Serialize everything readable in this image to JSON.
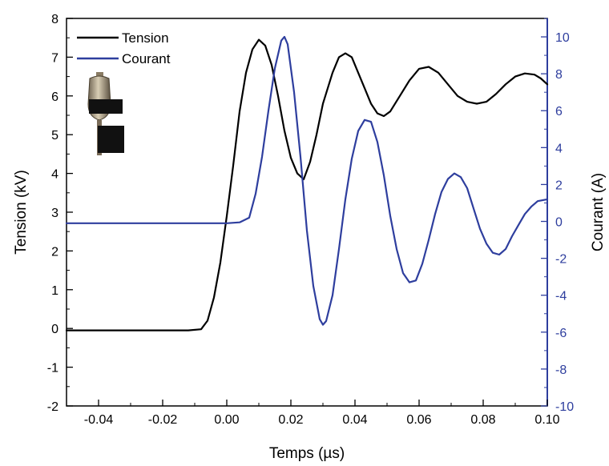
{
  "chart_data": {
    "type": "line",
    "xlabel": "Temps (µs)",
    "ylabel_left": "Tension (kV)",
    "ylabel_right": "Courant (A)",
    "xlim": [
      -0.05,
      0.1
    ],
    "ylim_left": [
      -2,
      8
    ],
    "ylim_right": [
      -10,
      11
    ],
    "x_ticks": [
      -0.04,
      -0.02,
      0.0,
      0.02,
      0.04,
      0.06,
      0.08,
      0.1
    ],
    "x_tick_labels": [
      "-0.04",
      "-0.02",
      "0.00",
      "0.02",
      "0.04",
      "0.06",
      "0.08",
      "0.10"
    ],
    "y_left_ticks": [
      -2,
      -1,
      0,
      1,
      2,
      3,
      4,
      5,
      6,
      7,
      8
    ],
    "y_left_tick_labels": [
      "-2",
      "-1",
      "0",
      "1",
      "2",
      "3",
      "4",
      "5",
      "6",
      "7",
      "8"
    ],
    "y_right_ticks": [
      -10,
      -8,
      -6,
      -4,
      -2,
      0,
      2,
      4,
      6,
      8,
      10
    ],
    "y_right_tick_labels": [
      "-10",
      "-8",
      "-6",
      "-4",
      "-2",
      "0",
      "2",
      "4",
      "6",
      "8",
      "10"
    ],
    "legend_position": "top-left",
    "grid": false,
    "series": [
      {
        "name": "Tension",
        "axis": "left",
        "color": "#000000",
        "x": [
          -0.05,
          -0.03,
          -0.012,
          -0.008,
          -0.006,
          -0.004,
          -0.002,
          0.0,
          0.002,
          0.004,
          0.006,
          0.008,
          0.01,
          0.012,
          0.014,
          0.016,
          0.018,
          0.02,
          0.022,
          0.024,
          0.026,
          0.028,
          0.03,
          0.033,
          0.035,
          0.037,
          0.039,
          0.041,
          0.043,
          0.045,
          0.047,
          0.049,
          0.051,
          0.054,
          0.057,
          0.06,
          0.063,
          0.066,
          0.069,
          0.072,
          0.075,
          0.078,
          0.081,
          0.084,
          0.087,
          0.09,
          0.093,
          0.096,
          0.098,
          0.1
        ],
        "y": [
          -0.05,
          -0.05,
          -0.05,
          -0.02,
          0.2,
          0.8,
          1.7,
          2.9,
          4.2,
          5.6,
          6.6,
          7.2,
          7.45,
          7.3,
          6.8,
          6.0,
          5.1,
          4.4,
          4.0,
          3.85,
          4.3,
          5.0,
          5.8,
          6.6,
          7.0,
          7.1,
          7.0,
          6.6,
          6.2,
          5.8,
          5.55,
          5.48,
          5.6,
          6.0,
          6.4,
          6.7,
          6.75,
          6.6,
          6.3,
          6.0,
          5.85,
          5.8,
          5.85,
          6.05,
          6.3,
          6.5,
          6.58,
          6.55,
          6.45,
          6.3
        ]
      },
      {
        "name": "Courant",
        "axis": "right",
        "color": "#2e3e9e",
        "x": [
          -0.05,
          -0.03,
          -0.01,
          0.0,
          0.004,
          0.007,
          0.009,
          0.011,
          0.013,
          0.015,
          0.017,
          0.018,
          0.019,
          0.021,
          0.023,
          0.025,
          0.027,
          0.029,
          0.03,
          0.031,
          0.033,
          0.035,
          0.037,
          0.039,
          0.041,
          0.043,
          0.045,
          0.047,
          0.049,
          0.051,
          0.053,
          0.055,
          0.057,
          0.059,
          0.061,
          0.063,
          0.065,
          0.067,
          0.069,
          0.071,
          0.073,
          0.075,
          0.077,
          0.079,
          0.081,
          0.083,
          0.085,
          0.087,
          0.089,
          0.091,
          0.093,
          0.095,
          0.097,
          0.1
        ],
        "y": [
          -0.1,
          -0.1,
          -0.1,
          -0.1,
          -0.05,
          0.2,
          1.5,
          3.5,
          6.0,
          8.3,
          9.8,
          10.0,
          9.6,
          7.0,
          3.5,
          -0.5,
          -3.5,
          -5.3,
          -5.6,
          -5.4,
          -4.0,
          -1.5,
          1.2,
          3.4,
          4.9,
          5.5,
          5.4,
          4.3,
          2.5,
          0.3,
          -1.5,
          -2.8,
          -3.3,
          -3.2,
          -2.3,
          -1.0,
          0.4,
          1.6,
          2.3,
          2.6,
          2.4,
          1.8,
          0.7,
          -0.4,
          -1.2,
          -1.7,
          -1.8,
          -1.5,
          -0.8,
          -0.2,
          0.4,
          0.8,
          1.1,
          1.2
        ]
      }
    ]
  },
  "legend": {
    "items": [
      {
        "label": "Tension",
        "color": "#000000"
      },
      {
        "label": "Courant",
        "color": "#2e3e9e"
      }
    ]
  },
  "inset_image": {
    "icon": "device-photo-icon"
  }
}
